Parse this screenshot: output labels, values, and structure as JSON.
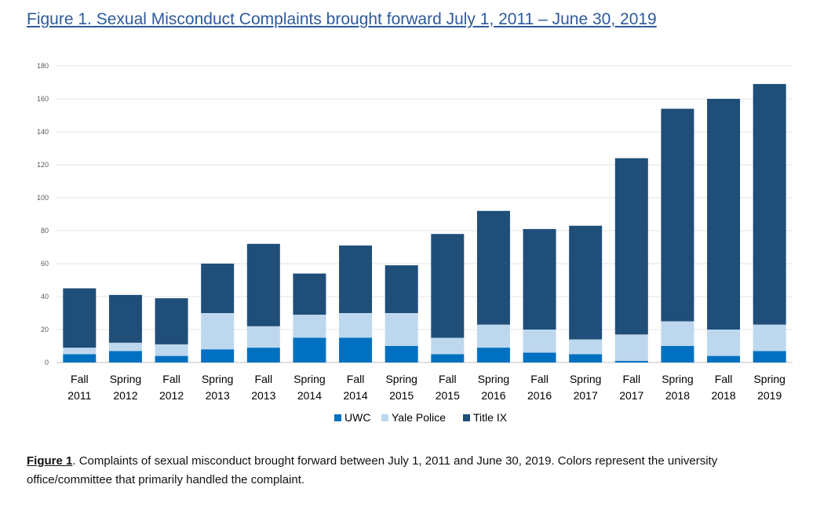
{
  "figure_title": "Figure 1. Sexual Misconduct Complaints brought forward July 1, 2011 – June 30, 2019",
  "caption": {
    "lead": "Figure 1",
    "text": ". Complaints of sexual misconduct brought forward between July 1, 2011 and June 30, 2019. Colors represent the university office/committee that primarily handled the complaint."
  },
  "chart_data": {
    "type": "bar",
    "stacked": true,
    "title": "",
    "xlabel": "",
    "ylabel": "",
    "ylim": [
      0,
      180
    ],
    "yticks": [
      0,
      20,
      40,
      60,
      80,
      100,
      120,
      140,
      160,
      180
    ],
    "grid": true,
    "legend_position": "bottom",
    "categories": [
      [
        "Fall",
        "2011"
      ],
      [
        "Spring",
        "2012"
      ],
      [
        "Fall",
        "2012"
      ],
      [
        "Spring",
        "2013"
      ],
      [
        "Fall",
        "2013"
      ],
      [
        "Spring",
        "2014"
      ],
      [
        "Fall",
        "2014"
      ],
      [
        "Spring",
        "2015"
      ],
      [
        "Fall",
        "2015"
      ],
      [
        "Spring",
        "2016"
      ],
      [
        "Fall",
        "2016"
      ],
      [
        "Spring",
        "2017"
      ],
      [
        "Fall",
        "2017"
      ],
      [
        "Spring",
        "2018"
      ],
      [
        "Fall",
        "2018"
      ],
      [
        "Spring",
        "2019"
      ]
    ],
    "series": [
      {
        "name": "UWC",
        "color": "#0070c0",
        "values": [
          5,
          7,
          4,
          8,
          9,
          15,
          15,
          10,
          5,
          9,
          6,
          5,
          1,
          10,
          4,
          7
        ]
      },
      {
        "name": "Yale Police",
        "color": "#bdd7ee",
        "values": [
          4,
          5,
          7,
          22,
          13,
          14,
          15,
          20,
          10,
          14,
          14,
          9,
          16,
          15,
          16,
          16
        ]
      },
      {
        "name": "Title IX",
        "color": "#1f4e79",
        "values": [
          36,
          29,
          28,
          30,
          50,
          25,
          41,
          29,
          63,
          69,
          61,
          69,
          107,
          129,
          140,
          146
        ]
      }
    ]
  }
}
